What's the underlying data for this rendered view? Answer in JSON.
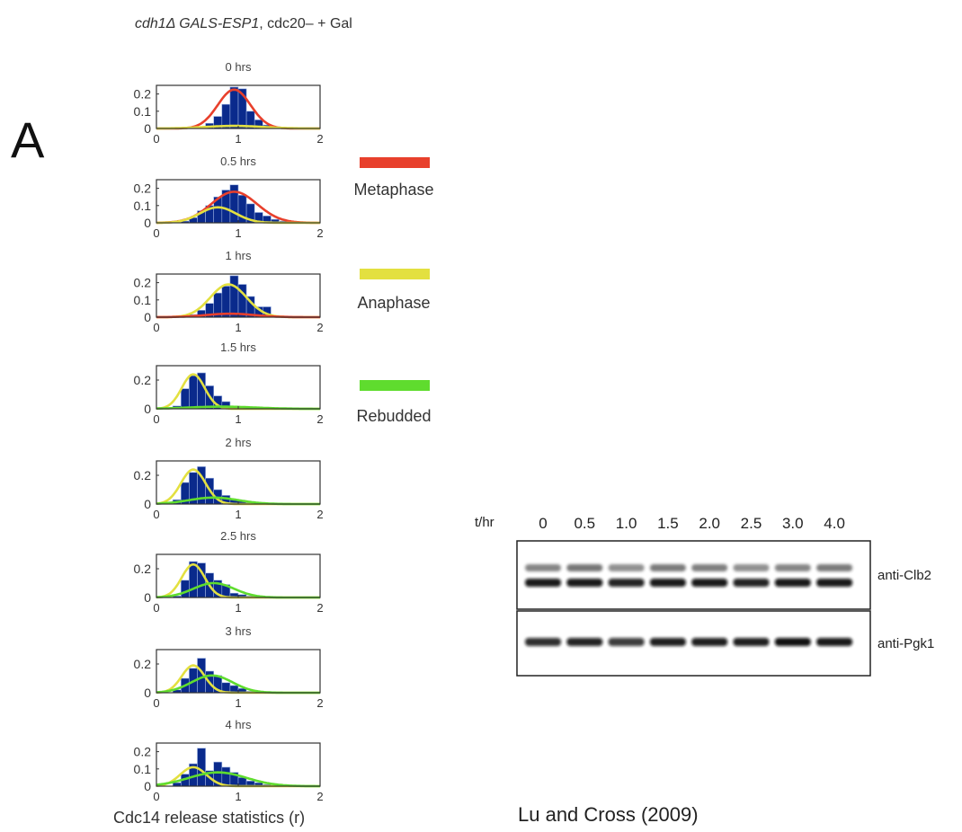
{
  "panel_letter": "A",
  "figure_title": {
    "part1": "cdh1Δ GALS-ESP1",
    "part2": ", cdc20–  + Gal"
  },
  "x_axis_label": "Cdc14 release statistics  (r)",
  "citation": "Lu and Cross (2009)",
  "legend": [
    {
      "label": "Metaphase",
      "color": "#e8402c"
    },
    {
      "label": "Anaphase",
      "color": "#e3e040"
    },
    {
      "label": "Rebudded",
      "color": "#5fdc2e"
    }
  ],
  "colors": {
    "bars": "#0a2a8c",
    "frame": "#333333"
  },
  "chart_data": {
    "type": "bar",
    "xlim": [
      0,
      2
    ],
    "x_ticks": [
      "0",
      "1",
      "2"
    ],
    "bin_centers": [
      0.05,
      0.15,
      0.25,
      0.35,
      0.45,
      0.55,
      0.65,
      0.75,
      0.85,
      0.95,
      1.05,
      1.15,
      1.25,
      1.35,
      1.45,
      1.55,
      1.65,
      1.75,
      1.85,
      1.95
    ],
    "panels": [
      {
        "title": "0 hrs",
        "y_ticks": [
          "0.2",
          "0.1",
          "0"
        ],
        "ylim": [
          0,
          0.25
        ],
        "bars": [
          0,
          0,
          0,
          0,
          0.005,
          0.01,
          0.03,
          0.07,
          0.14,
          0.24,
          0.23,
          0.1,
          0.05,
          0.02,
          0.005,
          0,
          0,
          0,
          0,
          0
        ],
        "curves": [
          {
            "phase": "Metaphase",
            "mu": 0.95,
            "sigma": 0.2,
            "amp": 0.225
          },
          {
            "phase": "Anaphase",
            "mu": 0.95,
            "sigma": 0.35,
            "amp": 0.015
          }
        ]
      },
      {
        "title": "0.5 hrs",
        "y_ticks": [
          "0.2",
          "0.1",
          "0"
        ],
        "ylim": [
          0,
          0.25
        ],
        "bars": [
          0,
          0,
          0,
          0.01,
          0.03,
          0.07,
          0.1,
          0.15,
          0.19,
          0.22,
          0.16,
          0.11,
          0.06,
          0.04,
          0.02,
          0.01,
          0.005,
          0,
          0,
          0
        ],
        "curves": [
          {
            "phase": "Metaphase",
            "mu": 0.95,
            "sigma": 0.28,
            "amp": 0.18
          },
          {
            "phase": "Anaphase",
            "mu": 0.75,
            "sigma": 0.22,
            "amp": 0.09
          }
        ]
      },
      {
        "title": "1 hrs",
        "y_ticks": [
          "0.2",
          "0.1",
          "0"
        ],
        "ylim": [
          0,
          0.25
        ],
        "bars": [
          0,
          0,
          0,
          0.005,
          0.015,
          0.04,
          0.08,
          0.14,
          0.18,
          0.24,
          0.19,
          0.12,
          0.06,
          0.06,
          0.01,
          0.005,
          0,
          0,
          0,
          0
        ],
        "curves": [
          {
            "phase": "Anaphase",
            "mu": 0.88,
            "sigma": 0.22,
            "amp": 0.19
          },
          {
            "phase": "Metaphase",
            "mu": 0.9,
            "sigma": 0.3,
            "amp": 0.02
          }
        ]
      },
      {
        "title": "1.5 hrs",
        "y_ticks": [
          "0.2",
          "0"
        ],
        "ylim": [
          0,
          0.3
        ],
        "bars": [
          0,
          0,
          0.02,
          0.14,
          0.23,
          0.25,
          0.16,
          0.09,
          0.05,
          0.02,
          0.01,
          0.005,
          0,
          0,
          0,
          0,
          0,
          0,
          0,
          0
        ],
        "curves": [
          {
            "phase": "Anaphase",
            "mu": 0.45,
            "sigma": 0.14,
            "amp": 0.24
          },
          {
            "phase": "Rebudded",
            "mu": 0.8,
            "sigma": 0.4,
            "amp": 0.015
          }
        ]
      },
      {
        "title": "2 hrs",
        "y_ticks": [
          "0.2",
          "0"
        ],
        "ylim": [
          0,
          0.3
        ],
        "bars": [
          0,
          0.01,
          0.03,
          0.15,
          0.22,
          0.26,
          0.18,
          0.1,
          0.06,
          0.03,
          0.02,
          0.01,
          0,
          0,
          0,
          0,
          0,
          0,
          0,
          0
        ],
        "curves": [
          {
            "phase": "Anaphase",
            "mu": 0.45,
            "sigma": 0.15,
            "amp": 0.24
          },
          {
            "phase": "Rebudded",
            "mu": 0.7,
            "sigma": 0.3,
            "amp": 0.045
          }
        ]
      },
      {
        "title": "2.5 hrs",
        "y_ticks": [
          "0.2",
          "0"
        ],
        "ylim": [
          0,
          0.3
        ],
        "bars": [
          0,
          0,
          0.01,
          0.12,
          0.25,
          0.24,
          0.17,
          0.12,
          0.09,
          0.03,
          0.02,
          0.01,
          0.005,
          0,
          0,
          0,
          0,
          0,
          0,
          0
        ],
        "curves": [
          {
            "phase": "Anaphase",
            "mu": 0.45,
            "sigma": 0.14,
            "amp": 0.23
          },
          {
            "phase": "Rebudded",
            "mu": 0.7,
            "sigma": 0.25,
            "amp": 0.1
          }
        ]
      },
      {
        "title": "3 hrs",
        "y_ticks": [
          "0.2",
          "0"
        ],
        "ylim": [
          0,
          0.3
        ],
        "bars": [
          0,
          0,
          0.02,
          0.1,
          0.17,
          0.24,
          0.15,
          0.12,
          0.07,
          0.05,
          0.03,
          0.01,
          0.005,
          0,
          0,
          0,
          0,
          0,
          0,
          0
        ],
        "curves": [
          {
            "phase": "Anaphase",
            "mu": 0.45,
            "sigma": 0.14,
            "amp": 0.19
          },
          {
            "phase": "Rebudded",
            "mu": 0.68,
            "sigma": 0.25,
            "amp": 0.12
          }
        ]
      },
      {
        "title": "4 hrs",
        "y_ticks": [
          "0.2",
          "0.1",
          "0"
        ],
        "ylim": [
          0,
          0.25
        ],
        "bars": [
          0,
          0,
          0.02,
          0.07,
          0.13,
          0.22,
          0.09,
          0.14,
          0.11,
          0.08,
          0.05,
          0.03,
          0.02,
          0.01,
          0.005,
          0,
          0,
          0,
          0,
          0
        ],
        "curves": [
          {
            "phase": "Anaphase",
            "mu": 0.45,
            "sigma": 0.16,
            "amp": 0.11
          },
          {
            "phase": "Rebudded",
            "mu": 0.75,
            "sigma": 0.35,
            "amp": 0.08
          }
        ]
      }
    ]
  },
  "western_blot": {
    "axis_label": "t/hr",
    "timepoints": [
      "0",
      "0.5",
      "1.0",
      "1.5",
      "2.0",
      "2.5",
      "3.0",
      "4.0"
    ],
    "panels": [
      {
        "antibody": "anti-Clb2",
        "upper_band": [
          0.55,
          0.62,
          0.5,
          0.6,
          0.58,
          0.5,
          0.55,
          0.6
        ],
        "lower_band": [
          0.95,
          0.95,
          0.9,
          0.95,
          0.95,
          0.9,
          0.95,
          0.95
        ]
      },
      {
        "antibody": "anti-Pgk1",
        "upper_band": [],
        "lower_band": [
          0.85,
          0.9,
          0.8,
          0.92,
          0.92,
          0.92,
          0.98,
          0.95
        ]
      }
    ]
  }
}
